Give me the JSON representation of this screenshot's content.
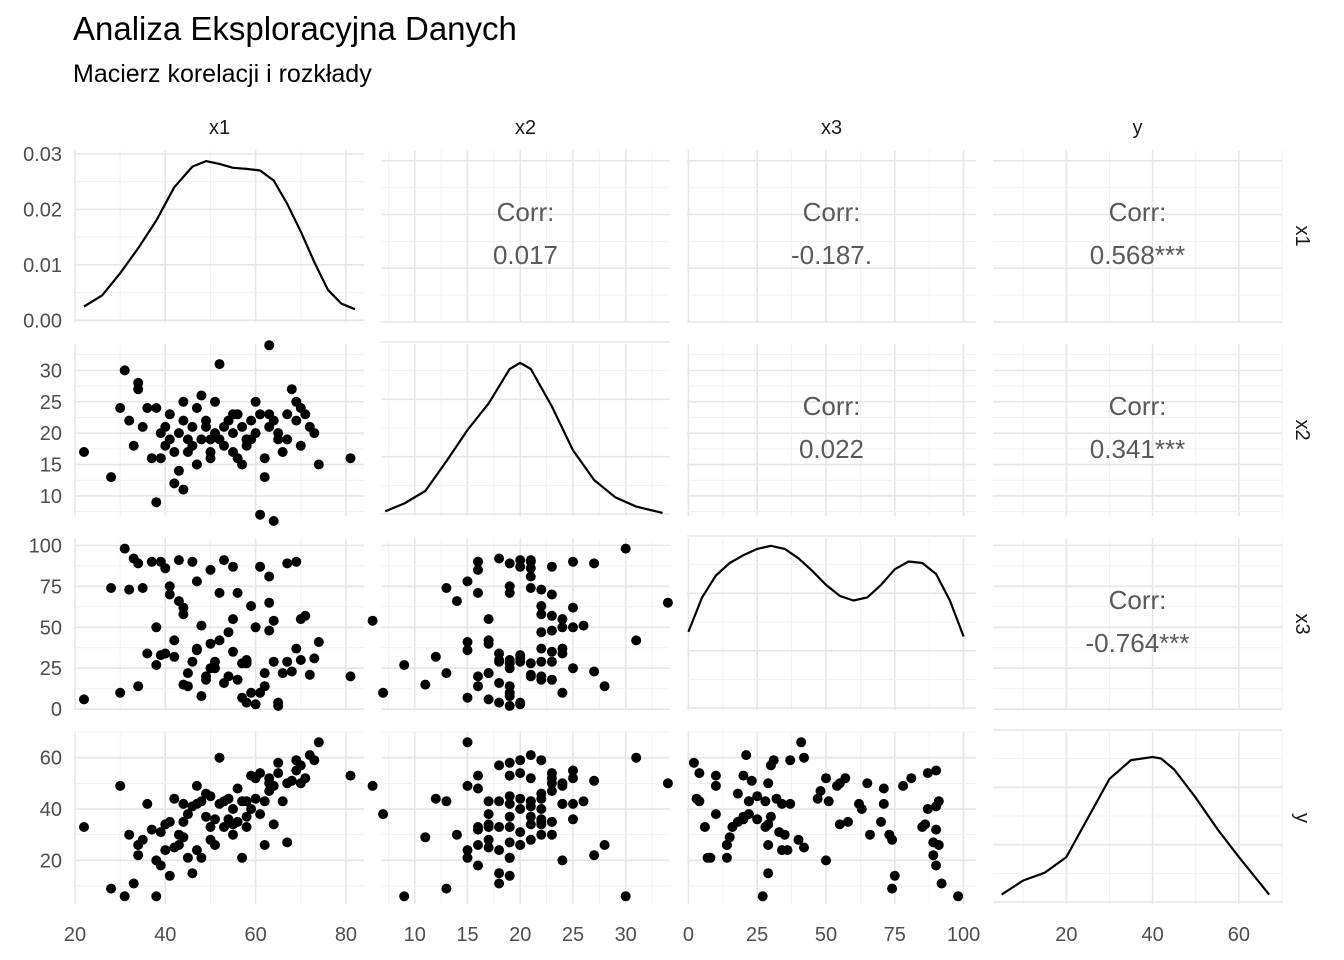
{
  "title": "Analiza Eksploracyjna Danych",
  "subtitle": "Macierz korelacji i rozkłady",
  "chart_data": {
    "type": "scatter",
    "variables": [
      "x1",
      "x2",
      "x3",
      "y"
    ],
    "diagonal": "density",
    "grid": true,
    "axes": {
      "x1": {
        "range": [
          20,
          84
        ],
        "ticks": [
          20,
          40,
          60,
          80
        ]
      },
      "x2": {
        "range": [
          6.8,
          34.2
        ],
        "ticks": [
          10,
          15,
          20,
          25,
          30
        ]
      },
      "x3": {
        "range": [
          -0.5,
          104.5
        ],
        "ticks": [
          0,
          25,
          50,
          75,
          100
        ]
      },
      "y": {
        "range": [
          3,
          70
        ],
        "ticks": [
          20,
          40,
          60
        ]
      }
    },
    "density_axis": {
      "var": "x1",
      "range": [
        -0.0003,
        0.0307
      ],
      "ticks": [
        "0.00",
        "0.01",
        "0.02",
        "0.03"
      ],
      "tick_values": [
        0,
        0.01,
        0.02,
        0.03
      ]
    },
    "density_curves": {
      "x1": [
        [
          22,
          0.0025
        ],
        [
          26,
          0.0045
        ],
        [
          30,
          0.0085
        ],
        [
          34,
          0.013
        ],
        [
          38,
          0.018
        ],
        [
          42,
          0.024
        ],
        [
          46,
          0.0277
        ],
        [
          49,
          0.0287
        ],
        [
          52,
          0.0282
        ],
        [
          55,
          0.0275
        ],
        [
          58,
          0.0273
        ],
        [
          61,
          0.027
        ],
        [
          64,
          0.0252
        ],
        [
          67,
          0.021
        ],
        [
          70,
          0.016
        ],
        [
          73,
          0.0105
        ],
        [
          76,
          0.0055
        ],
        [
          79,
          0.003
        ],
        [
          82,
          0.002
        ]
      ],
      "x2": [
        [
          7.2,
          0.03
        ],
        [
          9,
          0.08
        ],
        [
          11,
          0.16
        ],
        [
          13,
          0.35
        ],
        [
          15,
          0.55
        ],
        [
          17,
          0.72
        ],
        [
          19,
          0.94
        ],
        [
          20,
          0.98
        ],
        [
          21,
          0.94
        ],
        [
          23,
          0.7
        ],
        [
          25,
          0.42
        ],
        [
          27,
          0.23
        ],
        [
          29,
          0.12
        ],
        [
          31,
          0.06
        ],
        [
          33.5,
          0.02
        ]
      ],
      "x3": [
        [
          0,
          0.5
        ],
        [
          5,
          0.72
        ],
        [
          10,
          0.86
        ],
        [
          15,
          0.94
        ],
        [
          20,
          0.99
        ],
        [
          25,
          1.03
        ],
        [
          30,
          1.05
        ],
        [
          35,
          1.03
        ],
        [
          40,
          0.97
        ],
        [
          45,
          0.89
        ],
        [
          50,
          0.8
        ],
        [
          55,
          0.73
        ],
        [
          60,
          0.7
        ],
        [
          65,
          0.72
        ],
        [
          70,
          0.8
        ],
        [
          75,
          0.9
        ],
        [
          80,
          0.95
        ],
        [
          85,
          0.94
        ],
        [
          90,
          0.87
        ],
        [
          95,
          0.7
        ],
        [
          100,
          0.47
        ]
      ],
      "y": [
        [
          5,
          0.06
        ],
        [
          10,
          0.15
        ],
        [
          15,
          0.2
        ],
        [
          20,
          0.3
        ],
        [
          25,
          0.55
        ],
        [
          30,
          0.8
        ],
        [
          35,
          0.92
        ],
        [
          40,
          0.94
        ],
        [
          42,
          0.93
        ],
        [
          45,
          0.86
        ],
        [
          50,
          0.68
        ],
        [
          55,
          0.48
        ],
        [
          60,
          0.3
        ],
        [
          65,
          0.13
        ],
        [
          67,
          0.06
        ]
      ]
    },
    "correlations": [
      {
        "row": "x1",
        "col": "x2",
        "label": "Corr:",
        "value": "0.017"
      },
      {
        "row": "x1",
        "col": "x3",
        "label": "Corr:",
        "value": "-0.187."
      },
      {
        "row": "x1",
        "col": "y",
        "label": "Corr:",
        "value": "0.568***"
      },
      {
        "row": "x2",
        "col": "x3",
        "label": "Corr:",
        "value": "0.022"
      },
      {
        "row": "x2",
        "col": "y",
        "label": "Corr:",
        "value": "0.341***"
      },
      {
        "row": "x3",
        "col": "y",
        "label": "Corr:",
        "value": "-0.764***"
      }
    ],
    "points": {
      "x1": [
        22,
        28,
        30,
        31,
        32,
        33,
        34,
        34,
        35,
        36,
        37,
        38,
        38,
        39,
        40,
        40,
        41,
        41,
        42,
        42,
        43,
        43,
        44,
        44,
        45,
        45,
        46,
        46,
        47,
        47,
        48,
        48,
        49,
        49,
        50,
        50,
        51,
        51,
        52,
        52,
        53,
        53,
        54,
        54,
        55,
        55,
        56,
        56,
        57,
        57,
        58,
        58,
        59,
        59,
        60,
        60,
        61,
        61,
        62,
        62,
        63,
        63,
        64,
        64,
        65,
        65,
        66,
        67,
        67,
        68,
        69,
        69,
        70,
        70,
        71,
        72,
        73,
        74,
        81,
        55,
        47,
        39,
        58,
        63,
        44,
        50
      ],
      "x2": [
        17,
        13,
        24,
        30,
        22,
        18,
        27,
        28,
        21,
        24,
        16,
        9,
        24,
        16,
        21,
        18,
        19,
        23,
        17,
        12,
        14,
        20,
        22,
        25,
        19,
        17,
        18,
        21,
        24,
        15,
        19,
        26,
        22,
        21,
        17,
        16,
        20,
        25,
        19,
        31,
        18,
        21,
        22,
        22,
        23,
        20,
        16,
        23,
        21,
        15,
        19,
        18,
        22,
        19,
        20,
        25,
        23,
        7,
        16,
        13,
        21,
        34,
        22,
        6,
        19,
        20,
        17,
        23,
        19,
        27,
        22,
        25,
        24,
        18,
        23,
        21,
        20,
        15,
        16,
        17,
        15,
        20,
        19,
        23,
        11,
        19
      ],
      "x3": [
        6,
        74,
        10,
        98,
        73,
        92,
        89,
        14,
        74,
        34,
        90,
        27,
        50,
        90,
        86,
        34,
        75,
        70,
        42,
        32,
        66,
        91,
        58,
        62,
        14,
        22,
        29,
        90,
        37,
        78,
        8,
        51,
        18,
        20,
        40,
        85,
        29,
        25,
        71,
        42,
        16,
        91,
        47,
        20,
        35,
        87,
        71,
        18,
        28,
        7,
        28,
        4,
        63,
        10,
        3,
        50,
        87,
        10,
        14,
        22,
        81,
        65,
        29,
        54,
        2,
        4,
        22,
        29,
        89,
        23,
        37,
        90,
        55,
        30,
        57,
        21,
        31,
        41,
        20,
        55,
        36,
        33,
        30,
        48,
        15,
        25
      ],
      "y": [
        33,
        9,
        49,
        6,
        30,
        11,
        22,
        26,
        28,
        42,
        32,
        6,
        20,
        18,
        34,
        24,
        14,
        35,
        25,
        44,
        30,
        26,
        35,
        42,
        21,
        38,
        15,
        41,
        42,
        49,
        21,
        43,
        46,
        37,
        28,
        33,
        26,
        36,
        42,
        60,
        33,
        43,
        44,
        36,
        30,
        40,
        48,
        35,
        43,
        21,
        33,
        43,
        40,
        53,
        44,
        52,
        54,
        38,
        26,
        43,
        52,
        50,
        34,
        49,
        58,
        54,
        43,
        50,
        27,
        51,
        59,
        55,
        50,
        57,
        52,
        61,
        59,
        66,
        53,
        34,
        24,
        31,
        37,
        47,
        29,
        45
      ]
    }
  }
}
